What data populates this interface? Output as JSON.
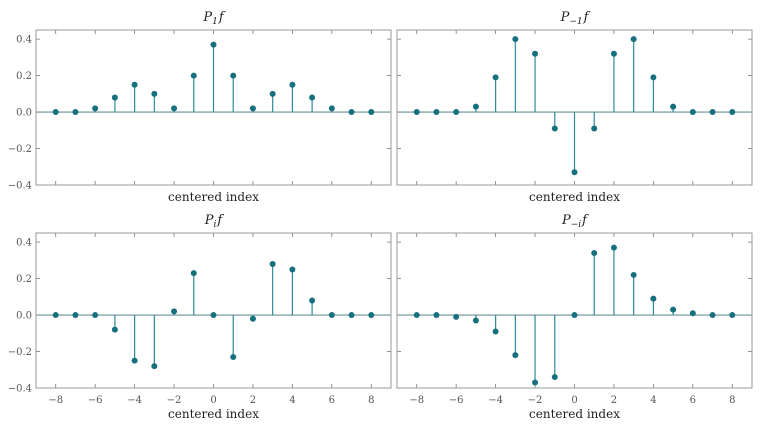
{
  "colors": {
    "stem": "#2e8b9a",
    "marker": "#17707e",
    "baseline": "#6a8f96",
    "frame": "#9a9a9a"
  },
  "chart_data": [
    {
      "type": "stem",
      "title": {
        "base": "P",
        "sub": "1",
        "suffix": "f"
      },
      "xlabel": "centered index",
      "ylabel": "",
      "xlim": [
        -9,
        9
      ],
      "ylim": [
        -0.4,
        0.45
      ],
      "xticks": [
        -8,
        -6,
        -4,
        -2,
        0,
        2,
        4,
        6,
        8
      ],
      "yticks": [
        -0.4,
        -0.2,
        0.0,
        0.2,
        0.4
      ],
      "show_xtick_labels": false,
      "show_ytick_labels": true,
      "x": [
        -8,
        -7,
        -6,
        -5,
        -4,
        -3,
        -2,
        -1,
        0,
        1,
        2,
        3,
        4,
        5,
        6,
        7,
        8
      ],
      "y": [
        0.0,
        0.0,
        0.02,
        0.08,
        0.15,
        0.1,
        0.02,
        0.2,
        0.37,
        0.2,
        0.02,
        0.1,
        0.15,
        0.08,
        0.02,
        0.0,
        0.0
      ]
    },
    {
      "type": "stem",
      "title": {
        "base": "P",
        "sub": "−1",
        "suffix": "f"
      },
      "xlabel": "centered index",
      "ylabel": "",
      "xlim": [
        -9,
        9
      ],
      "ylim": [
        -0.4,
        0.45
      ],
      "xticks": [
        -8,
        -6,
        -4,
        -2,
        0,
        2,
        4,
        6,
        8
      ],
      "yticks": [
        -0.4,
        -0.2,
        0.0,
        0.2,
        0.4
      ],
      "show_xtick_labels": false,
      "show_ytick_labels": false,
      "x": [
        -8,
        -7,
        -6,
        -5,
        -4,
        -3,
        -2,
        -1,
        0,
        1,
        2,
        3,
        4,
        5,
        6,
        7,
        8
      ],
      "y": [
        0.0,
        0.0,
        0.0,
        0.03,
        0.19,
        0.4,
        0.32,
        -0.09,
        -0.33,
        -0.09,
        0.32,
        0.4,
        0.19,
        0.03,
        0.0,
        0.0,
        0.0
      ]
    },
    {
      "type": "stem",
      "title": {
        "base": "P",
        "sub": "i",
        "suffix": "f"
      },
      "xlabel": "centered index",
      "ylabel": "",
      "xlim": [
        -9,
        9
      ],
      "ylim": [
        -0.4,
        0.45
      ],
      "xticks": [
        -8,
        -6,
        -4,
        -2,
        0,
        2,
        4,
        6,
        8
      ],
      "yticks": [
        -0.4,
        -0.2,
        0.0,
        0.2,
        0.4
      ],
      "show_xtick_labels": true,
      "show_ytick_labels": true,
      "x": [
        -8,
        -7,
        -6,
        -5,
        -4,
        -3,
        -2,
        -1,
        0,
        1,
        2,
        3,
        4,
        5,
        6,
        7,
        8
      ],
      "y": [
        0.0,
        0.0,
        0.0,
        -0.08,
        -0.25,
        -0.28,
        0.02,
        0.23,
        0.0,
        -0.23,
        -0.02,
        0.28,
        0.25,
        0.08,
        0.0,
        0.0,
        0.0
      ]
    },
    {
      "type": "stem",
      "title": {
        "base": "P",
        "sub": "−i",
        "suffix": "f"
      },
      "xlabel": "centered index",
      "ylabel": "",
      "xlim": [
        -9,
        9
      ],
      "ylim": [
        -0.4,
        0.45
      ],
      "xticks": [
        -8,
        -6,
        -4,
        -2,
        0,
        2,
        4,
        6,
        8
      ],
      "yticks": [
        -0.4,
        -0.2,
        0.0,
        0.2,
        0.4
      ],
      "show_xtick_labels": true,
      "show_ytick_labels": false,
      "x": [
        -8,
        -7,
        -6,
        -5,
        -4,
        -3,
        -2,
        -1,
        0,
        1,
        2,
        3,
        4,
        5,
        6,
        7,
        8
      ],
      "y": [
        0.0,
        0.0,
        -0.01,
        -0.03,
        -0.09,
        -0.22,
        -0.37,
        -0.34,
        0.0,
        0.34,
        0.37,
        0.22,
        0.09,
        0.03,
        0.01,
        0.0,
        0.0
      ]
    }
  ]
}
